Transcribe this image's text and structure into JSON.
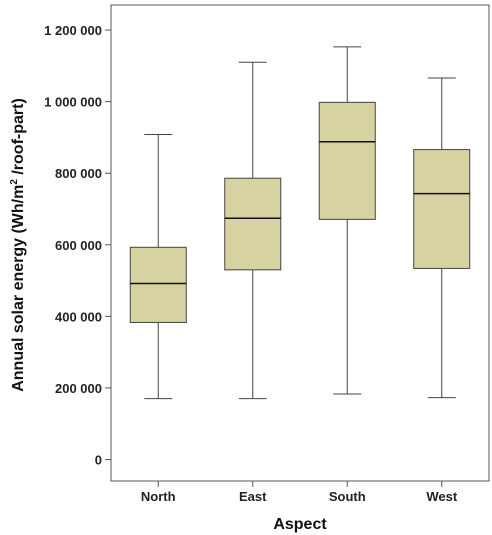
{
  "chart_data": {
    "type": "boxplot",
    "xlabel": "Aspect",
    "ylabel_main": "Annual solar energy (Wh/m",
    "ylabel_sup": "2",
    "ylabel_tail": " /roof-part)",
    "ylim": [
      -60000,
      1270000
    ],
    "yticks": [
      0,
      200000,
      400000,
      600000,
      800000,
      1000000,
      1200000
    ],
    "ytick_labels": [
      "0",
      "200 000",
      "400 000",
      "600 000",
      "800 000",
      "1 000 000",
      "1 200 000"
    ],
    "box_color": "#d6d2a1",
    "categories": [
      "North",
      "East",
      "South",
      "West"
    ],
    "boxes": [
      {
        "category": "North",
        "min": 170000,
        "q1": 383000,
        "median": 492000,
        "q3": 593000,
        "max": 908000
      },
      {
        "category": "East",
        "min": 170000,
        "q1": 530000,
        "median": 674000,
        "q3": 786000,
        "max": 1110000
      },
      {
        "category": "South",
        "min": 183000,
        "q1": 671000,
        "median": 888000,
        "q3": 998000,
        "max": 1153000
      },
      {
        "category": "West",
        "min": 173000,
        "q1": 534000,
        "median": 743000,
        "q3": 866000,
        "max": 1066000
      }
    ]
  }
}
